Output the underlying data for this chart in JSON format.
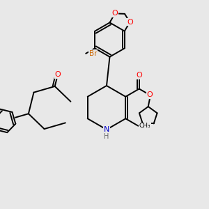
{
  "bg_color": "#e8e8e8",
  "atom_colors": {
    "O": "#ff0000",
    "N": "#0000cc",
    "Br": "#cc6600",
    "C": "#000000",
    "H": "#666666"
  },
  "figsize": [
    3.0,
    3.0
  ],
  "dpi": 100
}
